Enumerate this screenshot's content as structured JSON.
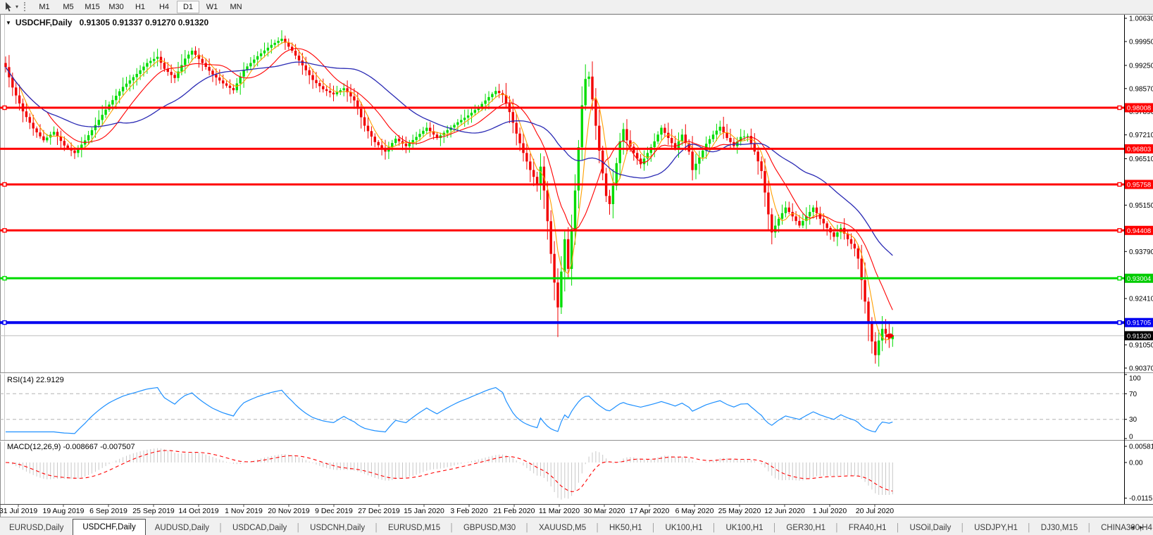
{
  "toolbar": {
    "timeframes": [
      "M1",
      "M5",
      "M15",
      "M30",
      "H1",
      "H4",
      "D1",
      "W1",
      "MN"
    ],
    "active_timeframe": "D1",
    "cursor_caret": "▾"
  },
  "window": {
    "menu_icon": "▼",
    "title_symbol": "USDCHF,Daily",
    "title_ohlc": "0.91305 0.91337 0.91270 0.91320"
  },
  "chart_data": {
    "type": "candlestick",
    "symbol": "USDCHF",
    "timeframe": "Daily",
    "ohlc_display": {
      "open": "0.91305",
      "high": "0.91337",
      "low": "0.91270",
      "close": "0.91320"
    },
    "num_candles": 258,
    "close_waypoints": [
      [
        0,
        0.992
      ],
      [
        2,
        0.986
      ],
      [
        5,
        0.979
      ],
      [
        8,
        0.974
      ],
      [
        11,
        0.9705
      ],
      [
        14,
        0.973
      ],
      [
        17,
        0.969
      ],
      [
        20,
        0.9668
      ],
      [
        23,
        0.9705
      ],
      [
        26,
        0.975
      ],
      [
        30,
        0.981
      ],
      [
        34,
        0.9862
      ],
      [
        38,
        0.99
      ],
      [
        41,
        0.9932
      ],
      [
        44,
        0.995
      ],
      [
        46,
        0.9915
      ],
      [
        49,
        0.9888
      ],
      [
        52,
        0.9945
      ],
      [
        54,
        0.9968
      ],
      [
        57,
        0.9932
      ],
      [
        60,
        0.9898
      ],
      [
        63,
        0.9872
      ],
      [
        66,
        0.9852
      ],
      [
        69,
        0.9912
      ],
      [
        73,
        0.9952
      ],
      [
        77,
        0.9985
      ],
      [
        80,
        1.0003
      ],
      [
        83,
        0.9968
      ],
      [
        86,
        0.9925
      ],
      [
        89,
        0.9882
      ],
      [
        92,
        0.9855
      ],
      [
        95,
        0.984
      ],
      [
        98,
        0.9858
      ],
      [
        101,
        0.9822
      ],
      [
        104,
        0.9748
      ],
      [
        107,
        0.97
      ],
      [
        110,
        0.9672
      ],
      [
        113,
        0.971
      ],
      [
        116,
        0.9688
      ],
      [
        119,
        0.9715
      ],
      [
        122,
        0.9742
      ],
      [
        125,
        0.9712
      ],
      [
        128,
        0.9735
      ],
      [
        131,
        0.9758
      ],
      [
        134,
        0.9778
      ],
      [
        137,
        0.9802
      ],
      [
        140,
        0.9832
      ],
      [
        142,
        0.985
      ],
      [
        144,
        0.9838
      ],
      [
        146,
        0.9788
      ],
      [
        148,
        0.9725
      ],
      [
        150,
        0.9668
      ],
      [
        152,
        0.9618
      ],
      [
        154,
        0.9578
      ],
      [
        155,
        0.9628
      ],
      [
        156,
        0.9558
      ],
      [
        157,
        0.9468
      ],
      [
        158,
        0.9372
      ],
      [
        159,
        0.9288
      ],
      [
        160,
        0.9215
      ],
      [
        161,
        0.932
      ],
      [
        162,
        0.9415
      ],
      [
        163,
        0.9328
      ],
      [
        164,
        0.9445
      ],
      [
        165,
        0.9558
      ],
      [
        166,
        0.9685
      ],
      [
        167,
        0.9808
      ],
      [
        168,
        0.9885
      ],
      [
        169,
        0.9892
      ],
      [
        170,
        0.9825
      ],
      [
        171,
        0.9748
      ],
      [
        172,
        0.9675
      ],
      [
        173,
        0.9608
      ],
      [
        174,
        0.9542
      ],
      [
        175,
        0.9518
      ],
      [
        176,
        0.9572
      ],
      [
        177,
        0.9638
      ],
      [
        178,
        0.9702
      ],
      [
        179,
        0.9738
      ],
      [
        180,
        0.9705
      ],
      [
        182,
        0.9668
      ],
      [
        184,
        0.9635
      ],
      [
        186,
        0.9668
      ],
      [
        188,
        0.9702
      ],
      [
        190,
        0.9742
      ],
      [
        192,
        0.9712
      ],
      [
        194,
        0.9682
      ],
      [
        196,
        0.9722
      ],
      [
        198,
        0.9672
      ],
      [
        199,
        0.9618
      ],
      [
        201,
        0.9655
      ],
      [
        203,
        0.9695
      ],
      [
        205,
        0.9722
      ],
      [
        207,
        0.9745
      ],
      [
        209,
        0.9712
      ],
      [
        211,
        0.9688
      ],
      [
        213,
        0.9715
      ],
      [
        215,
        0.9718
      ],
      [
        217,
        0.9672
      ],
      [
        219,
        0.9615
      ],
      [
        220,
        0.9552
      ],
      [
        221,
        0.9488
      ],
      [
        222,
        0.9435
      ],
      [
        224,
        0.9475
      ],
      [
        226,
        0.9508
      ],
      [
        228,
        0.9482
      ],
      [
        230,
        0.9455
      ],
      [
        232,
        0.9482
      ],
      [
        234,
        0.9508
      ],
      [
        236,
        0.9475
      ],
      [
        238,
        0.9448
      ],
      [
        240,
        0.9422
      ],
      [
        242,
        0.9448
      ],
      [
        244,
        0.9415
      ],
      [
        246,
        0.9388
      ],
      [
        247,
        0.9358
      ],
      [
        248,
        0.9295
      ],
      [
        249,
        0.9232
      ],
      [
        250,
        0.9172
      ],
      [
        251,
        0.9115
      ],
      [
        252,
        0.9075
      ],
      [
        253,
        0.9118
      ],
      [
        254,
        0.9152
      ],
      [
        255,
        0.9138
      ],
      [
        256,
        0.9122
      ],
      [
        257,
        0.9132
      ]
    ],
    "special_wicks": {
      "80": {
        "high": 1.0028
      },
      "160": {
        "low": 0.9128
      },
      "168": {
        "high": 0.9928
      },
      "222": {
        "low": 0.94
      },
      "252": {
        "low": 0.905
      }
    },
    "bull_color": "#00DC00",
    "bear_color": "#F20000",
    "moving_averages": [
      {
        "period": 5,
        "color": "#FFA000",
        "width": 1.1
      },
      {
        "period": 13,
        "color": "#FF0000",
        "width": 1.1
      },
      {
        "period": 34,
        "color": "#2A2AB4",
        "width": 1.3
      }
    ],
    "horizontal_lines": [
      {
        "price": 0.98008,
        "label": "0.98008",
        "color": "#FF0000",
        "width": 3,
        "selected": true
      },
      {
        "price": 0.96803,
        "label": "0.96803",
        "color": "#FF0000",
        "width": 3,
        "selected": false
      },
      {
        "price": 0.95758,
        "label": "0.95758",
        "color": "#FF0000",
        "width": 3,
        "selected": true
      },
      {
        "price": 0.94408,
        "label": "0.94408",
        "color": "#FF0000",
        "width": 3,
        "selected": true
      },
      {
        "price": 0.93004,
        "label": "0.93004",
        "color": "#00DC00",
        "width": 3,
        "selected": true
      },
      {
        "price": 0.91705,
        "label": "0.91705",
        "color": "#0000F0",
        "width": 4,
        "selected": true
      }
    ],
    "current_price": {
      "value": 0.9132,
      "label": "0.91320",
      "line_color": "#BBBBBB",
      "badge_color": "#000000"
    },
    "y_axis_labels": [
      1.0063,
      0.9995,
      0.9925,
      0.9857,
      0.9789,
      0.9721,
      0.9651,
      0.9515,
      0.9379,
      0.9241,
      0.9105,
      0.9037
    ],
    "x_labels": [
      "31 Jul 2019",
      "19 Aug 2019",
      "6 Sep 2019",
      "25 Sep 2019",
      "14 Oct 2019",
      "1 Nov 2019",
      "20 Nov 2019",
      "9 Dec 2019",
      "27 Dec 2019",
      "15 Jan 2020",
      "3 Feb 2020",
      "21 Feb 2020",
      "11 Mar 2020",
      "30 Mar 2020",
      "17 Apr 2020",
      "6 May 2020",
      "25 May 2020",
      "12 Jun 2020",
      "1 Jul 2020",
      "20 Jul 2020"
    ],
    "rsi": {
      "label": "RSI(14) 22.9129",
      "period": 14,
      "last_value": 22.9129,
      "levels": [
        100,
        70,
        30,
        0
      ],
      "dashed_levels": [
        70,
        30
      ],
      "line_color": "#1E90FF"
    },
    "macd": {
      "label": "MACD(12,26,9) -0.008667 -0.007507",
      "fast": 12,
      "slow": 26,
      "signal": 9,
      "macd_value": -0.008667,
      "signal_value": -0.007507,
      "axis_labels": [
        "0.005818",
        "0.00",
        "-0.01151"
      ],
      "axis_values": [
        0.005818,
        0,
        -0.01151
      ],
      "hist_color": "#C8C8C8",
      "signal_color": "#FF0000"
    }
  },
  "tabs": {
    "items": [
      "EURUSD,Daily",
      "USDCHF,Daily",
      "AUDUSD,Daily",
      "USDCAD,Daily",
      "USDCNH,Daily",
      "EURUSD,M15",
      "GBPUSD,M30",
      "XAUUSD,M5",
      "HK50,H1",
      "UK100,H1",
      "UK100,H1",
      "GER30,H1",
      "FRA40,H1",
      "USOil,Daily",
      "USDJPY,H1",
      "DJ30,M15",
      "CHINA300,H4"
    ],
    "active_index": 1,
    "separator": "│",
    "scroll_left_icon": "◂",
    "scroll_right_icon": "▸"
  }
}
